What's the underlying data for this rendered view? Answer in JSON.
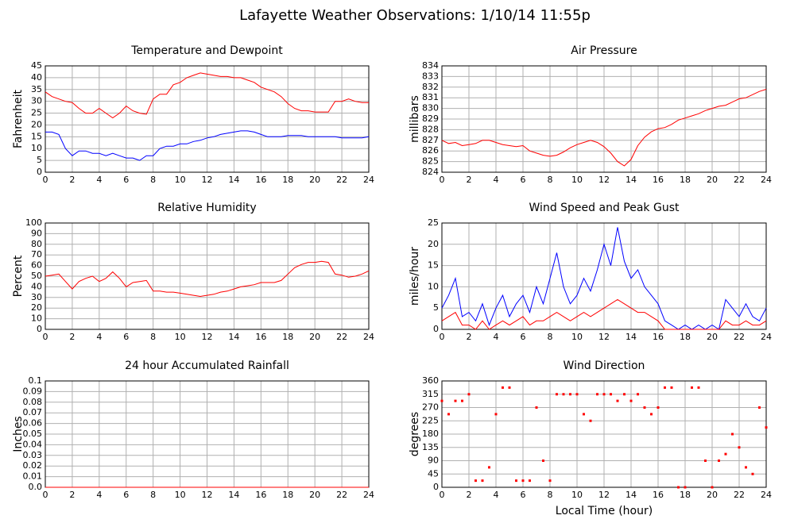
{
  "title": "Lafayette Weather Observations: 1/10/14 11:55p",
  "chart_data": [
    {
      "type": "line",
      "title": "Temperature and Dewpoint",
      "ylabel": "Fahrenheit",
      "x": [
        0,
        0.5,
        1,
        1.5,
        2,
        2.5,
        3,
        3.5,
        4,
        4.5,
        5,
        5.5,
        6,
        6.5,
        7,
        7.5,
        8,
        8.5,
        9,
        9.5,
        10,
        10.5,
        11,
        11.5,
        12,
        12.5,
        13,
        13.5,
        14,
        14.5,
        15,
        15.5,
        16,
        16.5,
        17,
        17.5,
        18,
        18.5,
        19,
        19.5,
        20,
        20.5,
        21,
        21.5,
        22,
        22.5,
        23,
        23.5,
        24
      ],
      "series": [
        {
          "color": "#ff0000",
          "values": [
            34,
            32,
            31,
            30,
            29.5,
            27,
            25,
            25,
            27,
            25,
            23,
            25,
            28,
            26,
            25,
            24.5,
            31,
            33,
            33,
            37,
            38,
            40,
            41,
            42,
            41.5,
            41,
            40.5,
            40.5,
            40,
            40,
            39,
            38,
            36,
            35,
            34,
            32,
            29,
            27,
            26,
            26,
            25.5,
            25.5,
            25.5,
            30,
            30,
            31,
            30,
            29.5,
            29.5
          ]
        },
        {
          "color": "#0000ff",
          "values": [
            17,
            17,
            16,
            10,
            7,
            9,
            9,
            8,
            8,
            7,
            8,
            7,
            6,
            6,
            5,
            7,
            7,
            10,
            11,
            11,
            12,
            12,
            13,
            13.5,
            14.5,
            15,
            16,
            16.5,
            17,
            17.5,
            17.5,
            17,
            16,
            15,
            15,
            15,
            15.5,
            15.5,
            15.5,
            15,
            15,
            15,
            15,
            15,
            14.5,
            14.5,
            14.5,
            14.5,
            15
          ]
        }
      ],
      "xlim": [
        0,
        24
      ],
      "xticks": [
        0,
        2,
        4,
        6,
        8,
        10,
        12,
        14,
        16,
        18,
        20,
        22,
        24
      ],
      "ylim": [
        0,
        45
      ],
      "yticks": [
        0,
        5,
        10,
        15,
        20,
        25,
        30,
        35,
        40,
        45
      ]
    },
    {
      "type": "line",
      "title": "Air Pressure",
      "ylabel": "millibars",
      "x": [
        0,
        0.5,
        1,
        1.5,
        2,
        2.5,
        3,
        3.5,
        4,
        4.5,
        5,
        5.5,
        6,
        6.5,
        7,
        7.5,
        8,
        8.5,
        9,
        9.5,
        10,
        10.5,
        11,
        11.5,
        12,
        12.5,
        13,
        13.5,
        14,
        14.5,
        15,
        15.5,
        16,
        16.5,
        17,
        17.5,
        18,
        18.5,
        19,
        19.5,
        20,
        20.5,
        21,
        21.5,
        22,
        22.5,
        23,
        23.5,
        24
      ],
      "series": [
        {
          "color": "#ff0000",
          "values": [
            827,
            826.7,
            826.8,
            826.5,
            826.6,
            826.7,
            827,
            827,
            826.8,
            826.6,
            826.5,
            826.4,
            826.5,
            826,
            825.8,
            825.6,
            825.5,
            825.6,
            825.9,
            826.3,
            826.6,
            826.8,
            827,
            826.8,
            826.4,
            825.8,
            825,
            824.6,
            825.2,
            826.5,
            827.3,
            827.8,
            828.1,
            828.2,
            828.5,
            828.9,
            829.1,
            829.3,
            829.5,
            829.8,
            830,
            830.2,
            830.3,
            830.6,
            830.9,
            831,
            831.3,
            831.6,
            831.8
          ]
        }
      ],
      "xlim": [
        0,
        24
      ],
      "xticks": [
        0,
        2,
        4,
        6,
        8,
        10,
        12,
        14,
        16,
        18,
        20,
        22,
        24
      ],
      "ylim": [
        824,
        834
      ],
      "yticks": [
        824,
        825,
        826,
        827,
        828,
        829,
        830,
        831,
        832,
        833,
        834
      ]
    },
    {
      "type": "line",
      "title": "Relative Humidity",
      "ylabel": "Percent",
      "x": [
        0,
        0.5,
        1,
        1.5,
        2,
        2.5,
        3,
        3.5,
        4,
        4.5,
        5,
        5.5,
        6,
        6.5,
        7,
        7.5,
        8,
        8.5,
        9,
        9.5,
        10,
        10.5,
        11,
        11.5,
        12,
        12.5,
        13,
        13.5,
        14,
        14.5,
        15,
        15.5,
        16,
        16.5,
        17,
        17.5,
        18,
        18.5,
        19,
        19.5,
        20,
        20.5,
        21,
        21.5,
        22,
        22.5,
        23,
        23.5,
        24
      ],
      "series": [
        {
          "color": "#ff0000",
          "values": [
            50,
            51,
            52,
            45,
            38,
            45,
            48,
            50,
            45,
            48,
            54,
            48,
            40,
            44,
            45,
            46,
            36,
            36,
            35,
            35,
            34,
            33,
            32,
            31,
            32,
            33,
            35,
            36,
            38,
            40,
            41,
            42,
            44,
            44,
            44,
            46,
            52,
            58,
            61,
            63,
            63,
            64,
            63,
            52,
            51,
            49,
            50,
            52,
            55
          ]
        }
      ],
      "xlim": [
        0,
        24
      ],
      "xticks": [
        0,
        2,
        4,
        6,
        8,
        10,
        12,
        14,
        16,
        18,
        20,
        22,
        24
      ],
      "ylim": [
        0,
        100
      ],
      "yticks": [
        0,
        10,
        20,
        30,
        40,
        50,
        60,
        70,
        80,
        90,
        100
      ]
    },
    {
      "type": "line",
      "title": "Wind Speed and Peak Gust",
      "ylabel": "miles/hour",
      "x": [
        0,
        0.5,
        1,
        1.5,
        2,
        2.5,
        3,
        3.5,
        4,
        4.5,
        5,
        5.5,
        6,
        6.5,
        7,
        7.5,
        8,
        8.5,
        9,
        9.5,
        10,
        10.5,
        11,
        11.5,
        12,
        12.5,
        13,
        13.5,
        14,
        14.5,
        15,
        15.5,
        16,
        16.5,
        17,
        17.5,
        18,
        18.5,
        19,
        19.5,
        20,
        20.5,
        21,
        21.5,
        22,
        22.5,
        23,
        23.5,
        24
      ],
      "series": [
        {
          "color": "#0000ff",
          "values": [
            5,
            8,
            12,
            3,
            4,
            2,
            6,
            1,
            5,
            8,
            3,
            6,
            8,
            4,
            10,
            6,
            12,
            18,
            10,
            6,
            8,
            12,
            9,
            14,
            20,
            15,
            24,
            16,
            12,
            14,
            10,
            8,
            6,
            2,
            1,
            0,
            1,
            0,
            1,
            0,
            1,
            0,
            7,
            5,
            3,
            6,
            3,
            2,
            5
          ]
        },
        {
          "color": "#ff0000",
          "values": [
            2,
            3,
            4,
            1,
            1,
            0,
            2,
            0,
            1,
            2,
            1,
            2,
            3,
            1,
            2,
            2,
            3,
            4,
            3,
            2,
            3,
            4,
            3,
            4,
            5,
            6,
            7,
            6,
            5,
            4,
            4,
            3,
            2,
            0,
            0,
            0,
            0,
            0,
            0,
            0,
            0,
            0,
            2,
            1,
            1,
            2,
            1,
            1,
            2
          ]
        }
      ],
      "xlim": [
        0,
        24
      ],
      "xticks": [
        0,
        2,
        4,
        6,
        8,
        10,
        12,
        14,
        16,
        18,
        20,
        22,
        24
      ],
      "ylim": [
        0,
        25
      ],
      "yticks": [
        0,
        5,
        10,
        15,
        20,
        25
      ]
    },
    {
      "type": "line",
      "title": "24 hour Accumulated Rainfall",
      "ylabel": "Inches",
      "x": [
        0,
        24
      ],
      "series": [
        {
          "color": "#ff0000",
          "values": [
            0,
            0
          ]
        }
      ],
      "xlim": [
        0,
        24
      ],
      "xticks": [
        0,
        2,
        4,
        6,
        8,
        10,
        12,
        14,
        16,
        18,
        20,
        22,
        24
      ],
      "ylim": [
        0,
        0.1
      ],
      "yticks": [
        {
          "value": 0,
          "label": "0.0"
        },
        0.01,
        0.02,
        0.03,
        0.04,
        0.05,
        0.06,
        0.07,
        0.08,
        0.09,
        0.1
      ]
    },
    {
      "type": "scatter",
      "title": "Wind Direction",
      "ylabel": "degrees",
      "xlabel": "Local Time (hour)",
      "x": [
        0,
        0.5,
        1,
        1.5,
        2,
        2.5,
        3,
        3.5,
        4,
        4.5,
        5,
        5.5,
        6,
        6.5,
        7,
        7.5,
        8,
        8.5,
        9,
        9.5,
        10,
        10.5,
        11,
        11.5,
        12,
        12.5,
        13,
        13.5,
        14,
        14.5,
        15,
        15.5,
        16,
        16.5,
        17,
        17.5,
        18,
        18.5,
        19,
        19.5,
        20,
        20.5,
        21,
        21.5,
        22,
        22.5,
        23,
        23.5,
        24
      ],
      "series": [
        {
          "color": "#ff0000",
          "values": [
            292.5,
            247.5,
            292.5,
            292.5,
            315,
            22.5,
            22.5,
            67.5,
            247.5,
            337.5,
            337.5,
            22.5,
            22.5,
            22.5,
            270,
            90,
            22.5,
            315,
            315,
            315,
            315,
            247.5,
            225,
            315,
            315,
            315,
            292.5,
            315,
            292.5,
            315,
            270,
            247.5,
            270,
            337.5,
            337.5,
            0,
            0,
            337.5,
            337.5,
            90,
            0,
            90,
            112.5,
            180,
            135,
            67.5,
            45,
            270,
            202.5
          ]
        }
      ],
      "xlim": [
        0,
        24
      ],
      "xticks": [
        0,
        2,
        4,
        6,
        8,
        10,
        12,
        14,
        16,
        18,
        20,
        22,
        24
      ],
      "ylim": [
        0,
        360
      ],
      "yticks": [
        0,
        45,
        90,
        135,
        180,
        225,
        270,
        315,
        360
      ]
    }
  ]
}
